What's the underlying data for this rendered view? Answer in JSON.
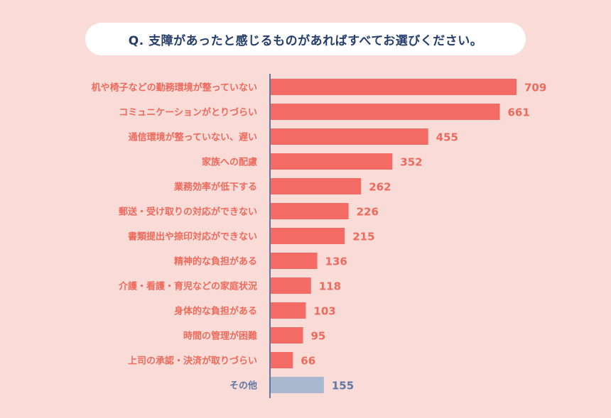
{
  "chart_data": {
    "type": "bar",
    "orientation": "horizontal",
    "title": "Q. 支障があったと感じるものがあればすべてお選びください。",
    "categories": [
      "机や椅子などの勤務環境が整っていない",
      "コミュニケーションがとりづらい",
      "通信環境が整っていない、遅い",
      "家族への配慮",
      "業務効率が低下する",
      "郵送・受け取りの対応ができない",
      "書類提出や捺印対応ができない",
      "精神的な負担がある",
      "介護・看護・育児などの家庭状況",
      "身体的な負担がある",
      "時間の管理が困難",
      "上司の承認・決済が取りづらい",
      "その他"
    ],
    "values": [
      709,
      661,
      455,
      352,
      262,
      226,
      215,
      136,
      118,
      103,
      95,
      66,
      155
    ],
    "xlim": [
      0,
      709
    ],
    "grid": false,
    "legend": "none",
    "colors": {
      "bar": "#f36b64",
      "bar_other": "#aab8cf",
      "label": "#ee6a5c",
      "label_other": "#5f77a2",
      "axis": "#5f77a2",
      "title": "#243d6b",
      "background": "#f9dcd7"
    }
  }
}
